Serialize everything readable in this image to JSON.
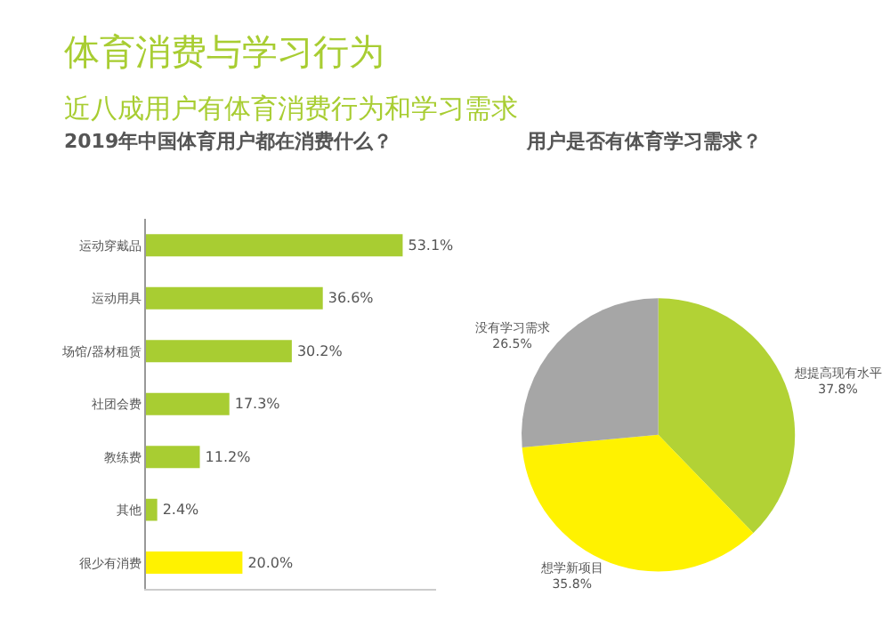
{
  "chart_data": [
    {
      "type": "bar",
      "orientation": "horizontal",
      "title": "2019年中国体育用户都在消费什么？",
      "annotations": [
        "体育消费与学习行为",
        "近八成用户有体育消费行为和学习需求"
      ],
      "categories": [
        "运动穿戴品",
        "运动用具",
        "场馆/器材租赁",
        "社团会费",
        "教练费",
        "其他",
        "很少有消费"
      ],
      "values": [
        53.1,
        36.6,
        30.2,
        17.3,
        11.2,
        2.4,
        20.0
      ],
      "value_labels": [
        "53.1%",
        "36.6%",
        "30.2%",
        "17.3%",
        "11.2%",
        "2.4%",
        "20.0%"
      ],
      "colors": [
        "#a8cd32",
        "#a8cd32",
        "#a8cd32",
        "#a8cd32",
        "#a8cd32",
        "#a8cd32",
        "#fff200"
      ],
      "xlim": [
        0,
        60
      ],
      "tick_labels": "y",
      "legend": false
    },
    {
      "type": "pie",
      "title": "用户是否有体育学习需求？",
      "categories": [
        "想提高现有水平",
        "想学新项目",
        "没有学习需求"
      ],
      "values": [
        37.8,
        35.8,
        26.5
      ],
      "value_labels": [
        "37.8%",
        "35.8%",
        "26.5%"
      ],
      "colors": [
        "#b2d235",
        "#fff200",
        "#a6a6a6"
      ],
      "legend": false
    }
  ]
}
